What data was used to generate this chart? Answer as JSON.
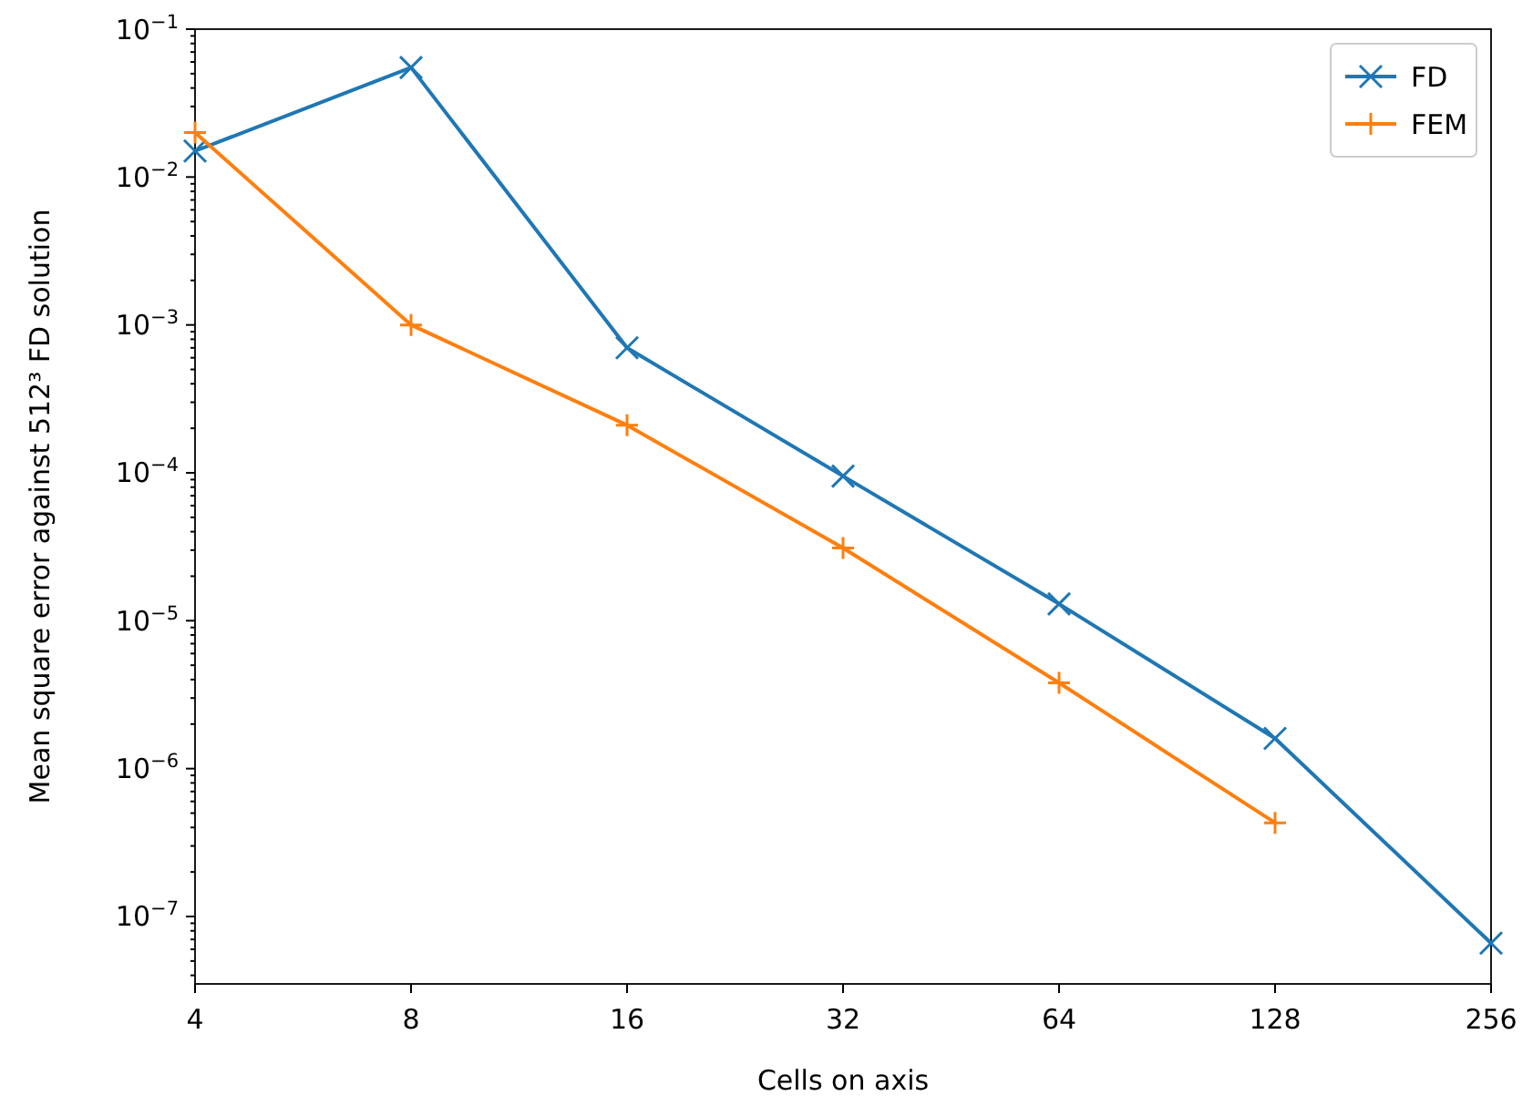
{
  "chart_data": {
    "type": "line",
    "xlabel": "Cells on axis",
    "ylabel": "Mean square error against 512³ FD solution",
    "log": "xy",
    "grid": false,
    "legend": "top right",
    "line_style": "solid",
    "x": [
      4,
      8,
      16,
      32,
      64,
      128,
      256
    ],
    "xlim": [
      4,
      256
    ],
    "xticks": [
      4,
      8,
      16,
      32,
      64,
      128,
      256
    ],
    "ylim": [
      3.5e-08,
      0.1
    ],
    "yticks": [
      {
        "value": 1e-07,
        "label": "10$^{−7}$"
      },
      {
        "value": 1e-06,
        "label": "10$^{−6}$"
      },
      {
        "value": 1e-05,
        "label": "10$^{−5}$"
      },
      {
        "value": 0.0001,
        "label": "10$^{−4}$"
      },
      {
        "value": 0.001,
        "label": "10$^{−3}$"
      },
      {
        "value": 0.01,
        "label": "10$^{−2}$"
      },
      {
        "value": 0.1,
        "label": "10$^{−1}$"
      }
    ],
    "series": [
      {
        "name": "FD",
        "color": "#1f77b4",
        "marker": "cross",
        "values": [
          0.015,
          0.055,
          0.0007,
          9.5e-05,
          1.3e-05,
          1.6e-06,
          6.6e-08
        ]
      },
      {
        "name": "FEM",
        "color": "#ff7f0e",
        "marker": "plus",
        "values": [
          0.02,
          0.001,
          0.00021,
          3.1e-05,
          3.8e-06,
          4.3e-07,
          null
        ]
      }
    ]
  }
}
